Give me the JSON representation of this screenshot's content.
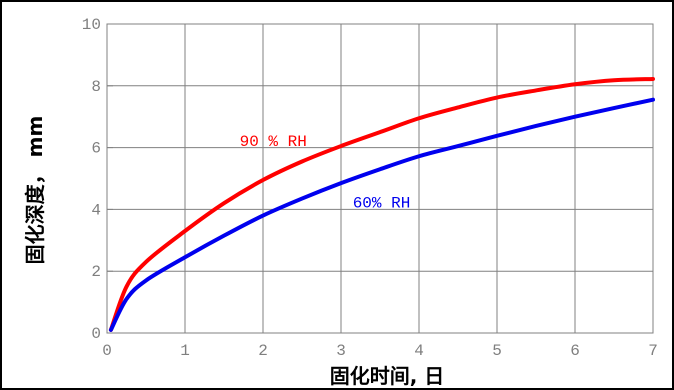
{
  "chart_data": {
    "type": "line",
    "title": "",
    "xlabel": "固化时间, 日",
    "ylabel": "固化深度， mm",
    "xlim": [
      0,
      7
    ],
    "ylim": [
      0,
      10
    ],
    "xticks": [
      0,
      1,
      2,
      3,
      4,
      5,
      6,
      7
    ],
    "yticks": [
      0,
      2,
      4,
      6,
      8,
      10
    ],
    "grid": true,
    "legend": "none",
    "series": [
      {
        "name": "90 % RH",
        "color": "#ff0000",
        "x": [
          0.05,
          0.25,
          0.5,
          1,
          1.5,
          2,
          2.5,
          3,
          3.5,
          4,
          4.5,
          5,
          5.5,
          6,
          6.5,
          7
        ],
        "y": [
          0.1,
          1.5,
          2.3,
          3.3,
          4.2,
          4.95,
          5.55,
          6.05,
          6.5,
          6.95,
          7.3,
          7.62,
          7.85,
          8.05,
          8.18,
          8.22
        ]
      },
      {
        "name": "60% RH",
        "color": "#0000ee",
        "x": [
          0.05,
          0.25,
          0.5,
          1,
          1.5,
          2,
          2.5,
          3,
          3.5,
          4,
          4.5,
          5,
          5.5,
          6,
          6.5,
          7
        ],
        "y": [
          0.1,
          1.1,
          1.7,
          2.45,
          3.15,
          3.8,
          4.35,
          4.85,
          5.3,
          5.72,
          6.05,
          6.38,
          6.7,
          7.0,
          7.28,
          7.55
        ]
      }
    ]
  }
}
